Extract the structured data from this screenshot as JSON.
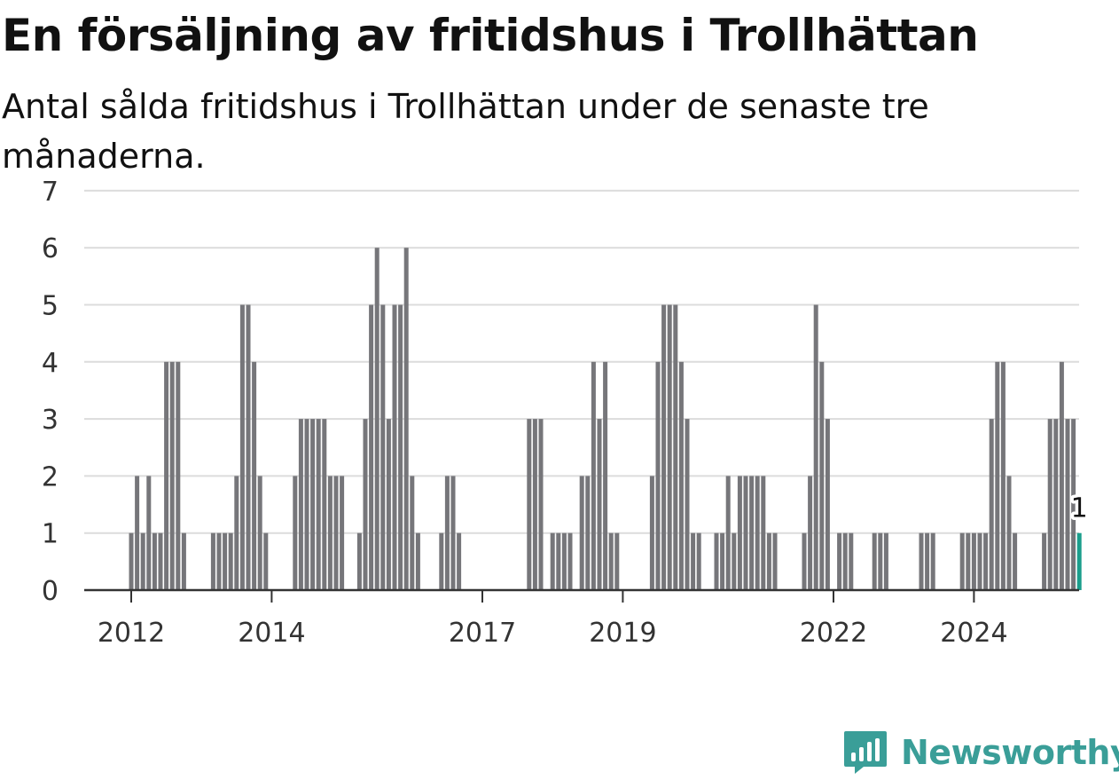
{
  "title": "En försäljning av fritidshus i Trollhättan",
  "subtitle": "Antal sålda fritidshus i Trollhättan under de senaste tre månaderna.",
  "brand": {
    "name": "Newsworthy",
    "icon": "chart-bubble-icon",
    "color": "#3a9e98"
  },
  "colors": {
    "bar": "#76767a",
    "highlight": "#1a9e8c",
    "grid": "#dcdcdc",
    "axis": "#333333"
  },
  "chart_data": {
    "type": "bar",
    "title": "En försäljning av fritidshus i Trollhättan",
    "subtitle": "Antal sålda fritidshus i Trollhättan under de senaste tre månaderna.",
    "xlabel": "",
    "ylabel": "",
    "ylim": [
      0,
      7
    ],
    "yticks": [
      0,
      1,
      2,
      3,
      4,
      5,
      6,
      7
    ],
    "xticks": [
      "2012",
      "2014",
      "2017",
      "2019",
      "2022",
      "2024"
    ],
    "grid": true,
    "legend": "none",
    "start_month": "2012-01",
    "values": [
      1,
      2,
      1,
      2,
      1,
      1,
      4,
      4,
      4,
      1,
      0,
      0,
      0,
      0,
      1,
      1,
      1,
      1,
      2,
      5,
      5,
      4,
      2,
      1,
      0,
      0,
      0,
      0,
      2,
      3,
      3,
      3,
      3,
      3,
      2,
      2,
      2,
      0,
      0,
      1,
      3,
      5,
      6,
      5,
      3,
      5,
      5,
      6,
      2,
      1,
      0,
      0,
      0,
      1,
      2,
      2,
      1,
      0,
      0,
      0,
      0,
      0,
      0,
      0,
      0,
      0,
      0,
      0,
      3,
      3,
      3,
      0,
      1,
      1,
      1,
      1,
      0,
      2,
      2,
      4,
      3,
      4,
      1,
      1,
      0,
      0,
      0,
      0,
      0,
      2,
      4,
      5,
      5,
      5,
      4,
      3,
      1,
      1,
      0,
      0,
      1,
      1,
      2,
      1,
      2,
      2,
      2,
      2,
      2,
      1,
      1,
      0,
      0,
      0,
      0,
      1,
      2,
      5,
      4,
      3,
      0,
      1,
      1,
      1,
      0,
      0,
      0,
      1,
      1,
      1,
      0,
      0,
      0,
      0,
      0,
      1,
      1,
      1,
      0,
      0,
      0,
      0,
      1,
      1,
      1,
      1,
      1,
      3,
      4,
      4,
      2,
      1,
      0,
      0,
      0,
      0,
      1,
      3,
      3,
      4,
      3,
      3,
      1
    ],
    "highlight_label": "1"
  }
}
